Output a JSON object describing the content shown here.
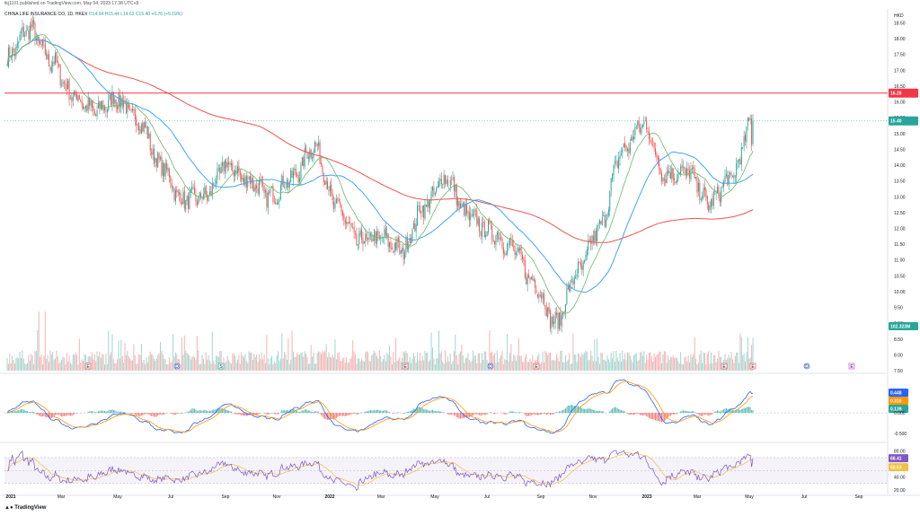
{
  "header": {
    "published": "tkj1101 published on TradingView.com, May 04, 2023 17:38 UTC+8",
    "legend": {
      "symbol": "CHINA LIFE INSURANCE CO, 1D, HKEX",
      "o": "O14.64",
      "h": "H15.44",
      "l": "L14.62",
      "c": "C15.40",
      "chg": "+0.76 (+5.19%)"
    },
    "currency": "HKD"
  },
  "footer": {
    "brand": "TradingView"
  },
  "colors": {
    "up": "#26a69a",
    "down": "#ef5350",
    "ma_fast": "#66bb6a",
    "ma_mid": "#42a5f5",
    "ma_slow": "#ef5350",
    "hline": "#f23645",
    "macd": "#2962ff",
    "signal": "#ff9800",
    "rsi": "#7e57c2",
    "rsi_ma": "#f0c040"
  },
  "chart_data": [
    {
      "type": "candlestick",
      "title": "CHINA LIFE INSURANCE CO, 1D, HKEX",
      "ylabel": "HKD",
      "ylim": [
        7.5,
        18.6
      ],
      "y_ticks": [
        "18.50",
        "18.00",
        "17.50",
        "17.00",
        "16.50",
        "16.00",
        "15.50",
        "15.00",
        "14.50",
        "14.00",
        "13.50",
        "13.00",
        "12.50",
        "12.00",
        "11.50",
        "11.00",
        "10.50",
        "10.00",
        "9.50",
        "9.00",
        "8.50",
        "8.00",
        "7.50"
      ],
      "x_ticks": [
        "2021",
        "Mar",
        "May",
        "Jul",
        "Sep",
        "Nov",
        "2022",
        "Mar",
        "May",
        "Jul",
        "Sep",
        "Nov",
        "2023",
        "Mar",
        "May",
        "Jul",
        "Sep"
      ],
      "horizontal_line": {
        "value": 16.28,
        "label": "16.28"
      },
      "last_price_label": "15.40",
      "volume_label": "102.323M",
      "price_keypoints": [
        [
          "2021-01",
          17.4
        ],
        [
          "2021-02",
          18.3
        ],
        [
          "2021-03",
          17.3
        ],
        [
          "2021-04",
          16.2
        ],
        [
          "2021-05",
          15.7
        ],
        [
          "2021-06",
          16.1
        ],
        [
          "2021-07",
          15.4
        ],
        [
          "2021-07b",
          14.0
        ],
        [
          "2021-08",
          12.9
        ],
        [
          "2021-09",
          13.0
        ],
        [
          "2021-10",
          14.0
        ],
        [
          "2021-11",
          13.5
        ],
        [
          "2021-12",
          13.0
        ],
        [
          "2022-01",
          13.6
        ],
        [
          "2022-02",
          14.6
        ],
        [
          "2022-03",
          12.7
        ],
        [
          "2022-03b",
          11.6
        ],
        [
          "2022-04",
          11.7
        ],
        [
          "2022-05",
          11.3
        ],
        [
          "2022-06",
          12.7
        ],
        [
          "2022-07",
          13.6
        ],
        [
          "2022-07b",
          12.4
        ],
        [
          "2022-08",
          11.9
        ],
        [
          "2022-09",
          11.4
        ],
        [
          "2022-10",
          10.3
        ],
        [
          "2022-11",
          9.0
        ],
        [
          "2022-11b",
          10.6
        ],
        [
          "2022-12",
          12.0
        ],
        [
          "2023-01",
          14.4
        ],
        [
          "2023-01b",
          15.3
        ],
        [
          "2023-02",
          13.7
        ],
        [
          "2023-03",
          13.8
        ],
        [
          "2023-04",
          12.8
        ],
        [
          "2023-04b",
          13.6
        ],
        [
          "2023-05",
          15.4
        ]
      ],
      "series": [
        {
          "name": "MA fast",
          "color": "#66bb6a"
        },
        {
          "name": "MA mid",
          "color": "#42a5f5"
        },
        {
          "name": "MA slow",
          "color": "#ef5350"
        }
      ],
      "event_markers": [
        "E",
        "D",
        "S",
        "E",
        "D",
        "E",
        "E",
        "E",
        "D",
        "E"
      ]
    },
    {
      "type": "line",
      "title": "MACD",
      "ylim": [
        -0.65,
        0.85
      ],
      "y_ticks": [
        "0.000",
        "-0.500"
      ],
      "labels": {
        "macd": "0.448",
        "signal": "0.310",
        "hist": "0.139"
      }
    },
    {
      "type": "line",
      "title": "RSI",
      "ylim": [
        17,
        88
      ],
      "y_ticks": [
        "80.00",
        "40.00",
        "20.00"
      ],
      "labels": {
        "rsi": "68.41",
        "rsi_ma": "60.53"
      }
    }
  ]
}
